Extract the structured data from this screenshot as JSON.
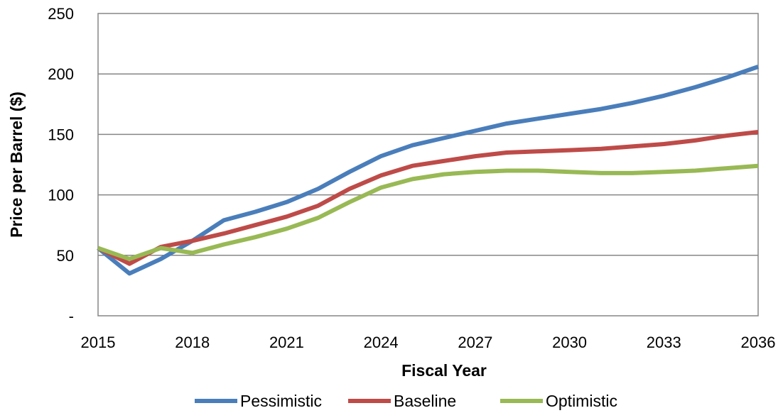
{
  "chart_data": {
    "type": "line",
    "title": "",
    "xlabel": "Fiscal Year",
    "ylabel": "Price per Barrel ($)",
    "x": [
      2015,
      2016,
      2017,
      2018,
      2019,
      2020,
      2021,
      2022,
      2023,
      2024,
      2025,
      2026,
      2027,
      2028,
      2029,
      2030,
      2031,
      2032,
      2033,
      2034,
      2035,
      2036
    ],
    "xlim": [
      2015,
      2036
    ],
    "ylim": [
      0,
      250
    ],
    "x_ticks": [
      2015,
      2018,
      2021,
      2024,
      2027,
      2030,
      2033,
      2036
    ],
    "x_tick_labels": [
      "2015",
      "2018",
      "2021",
      "2024",
      "2027",
      "2030",
      "2033",
      "2036"
    ],
    "y_ticks": [
      0,
      50,
      100,
      150,
      200,
      250
    ],
    "y_tick_labels": [
      "-",
      "50",
      "100",
      "150",
      "200",
      "250"
    ],
    "grid": "horizontal",
    "legend_position": "bottom",
    "series": [
      {
        "name": "Pessimistic",
        "color": "#4a7ebb",
        "values": [
          56,
          35,
          47,
          62,
          79,
          86,
          94,
          105,
          119,
          132,
          141,
          147,
          153,
          159,
          163,
          167,
          171,
          176,
          182,
          189,
          197,
          206
        ]
      },
      {
        "name": "Baseline",
        "color": "#be4b48",
        "values": [
          56,
          43,
          57,
          62,
          68,
          75,
          82,
          91,
          105,
          116,
          124,
          128,
          132,
          135,
          136,
          137,
          138,
          140,
          142,
          145,
          149,
          152
        ]
      },
      {
        "name": "Optimistic",
        "color": "#98b954",
        "values": [
          56,
          47,
          56,
          52,
          59,
          65,
          72,
          81,
          94,
          106,
          113,
          117,
          119,
          120,
          120,
          119,
          118,
          118,
          119,
          120,
          122,
          124
        ]
      }
    ]
  }
}
